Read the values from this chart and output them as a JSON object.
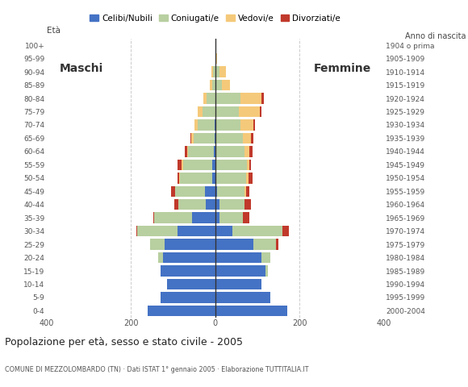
{
  "age_groups": [
    "0-4",
    "5-9",
    "10-14",
    "15-19",
    "20-24",
    "25-29",
    "30-34",
    "35-39",
    "40-44",
    "45-49",
    "50-54",
    "55-59",
    "60-64",
    "65-69",
    "70-74",
    "75-79",
    "80-84",
    "85-89",
    "90-94",
    "95-99",
    "100+"
  ],
  "birth_years": [
    "2000-2004",
    "1995-1999",
    "1990-1994",
    "1985-1989",
    "1980-1984",
    "1975-1979",
    "1970-1974",
    "1965-1969",
    "1960-1964",
    "1955-1959",
    "1950-1954",
    "1945-1949",
    "1940-1944",
    "1935-1939",
    "1930-1934",
    "1925-1929",
    "1920-1924",
    "1915-1919",
    "1910-1914",
    "1905-1909",
    "1904 o prima"
  ],
  "male": {
    "celibi": [
      160,
      130,
      115,
      130,
      125,
      120,
      90,
      55,
      22,
      25,
      8,
      7,
      4,
      2,
      2,
      0,
      0,
      0,
      0,
      0,
      0
    ],
    "coniugati": [
      0,
      0,
      0,
      0,
      10,
      35,
      95,
      90,
      65,
      70,
      75,
      70,
      60,
      50,
      40,
      30,
      20,
      8,
      5,
      0,
      0
    ],
    "vedovi": [
      0,
      0,
      0,
      0,
      0,
      0,
      0,
      0,
      0,
      0,
      2,
      3,
      3,
      5,
      8,
      12,
      8,
      5,
      5,
      0,
      0
    ],
    "divorziati": [
      0,
      0,
      0,
      0,
      0,
      0,
      3,
      3,
      10,
      10,
      5,
      10,
      5,
      2,
      0,
      0,
      0,
      0,
      0,
      0,
      0
    ]
  },
  "female": {
    "nubili": [
      170,
      130,
      110,
      120,
      110,
      90,
      40,
      10,
      10,
      5,
      3,
      0,
      0,
      0,
      0,
      0,
      0,
      0,
      0,
      0,
      0
    ],
    "coniugate": [
      0,
      0,
      0,
      5,
      20,
      55,
      120,
      55,
      60,
      65,
      70,
      75,
      70,
      65,
      60,
      55,
      60,
      15,
      10,
      2,
      0
    ],
    "vedove": [
      0,
      0,
      0,
      0,
      0,
      0,
      0,
      0,
      0,
      3,
      5,
      5,
      10,
      20,
      30,
      50,
      50,
      20,
      15,
      3,
      0
    ],
    "divorziate": [
      0,
      0,
      0,
      0,
      0,
      5,
      15,
      15,
      15,
      8,
      10,
      5,
      8,
      5,
      5,
      5,
      5,
      0,
      0,
      0,
      0
    ]
  },
  "colors": {
    "celibi": "#4472c4",
    "coniugati": "#b8cfa0",
    "vedovi": "#f5c97a",
    "divorziati": "#c0392b"
  },
  "xlim": 400,
  "title": "Popolazione per età, sesso e stato civile - 2005",
  "subtitle": "COMUNE DI MEZZOLOMBARDO (TN) · Dati ISTAT 1° gennaio 2005 · Elaborazione TUTTITALIA.IT",
  "ylabel_left": "Età",
  "ylabel_right": "Anno di nascita",
  "legend_labels": [
    "Celibi/Nubili",
    "Coniugati/e",
    "Vedovi/e",
    "Divorziati/e"
  ],
  "bg_color": "#ffffff",
  "grid_color": "#cccccc",
  "label_maschi": "Maschi",
  "label_femmine": "Femmine"
}
